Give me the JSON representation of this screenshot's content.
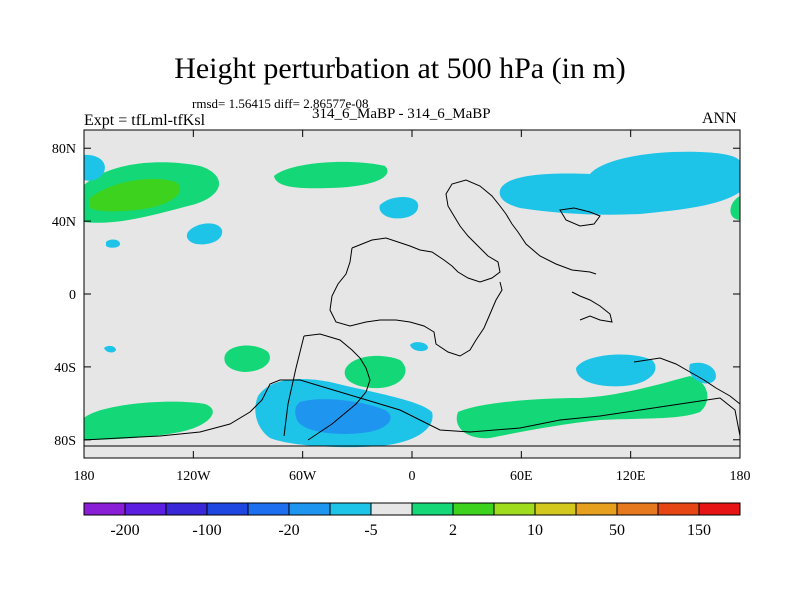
{
  "title": "Height perturbation at 500 hPa (in m)",
  "stats": "rmsd= 1.56415 diff= 2.86577e-08",
  "expt": "Expt = tfLml-tfKsl",
  "subtitle": "314_6_MaBP - 314_6_MaBP",
  "season": "ANN",
  "map": {
    "lon_range": [
      -180,
      180
    ],
    "lat_range": [
      -90,
      90
    ],
    "background_color": "#e6e6e6",
    "y_ticks": [
      {
        "value": 80,
        "label": "80N"
      },
      {
        "value": 40,
        "label": "40N"
      },
      {
        "value": 0,
        "label": "0"
      },
      {
        "value": -40,
        "label": "40S"
      },
      {
        "value": -80,
        "label": "80S"
      }
    ],
    "x_ticks": [
      {
        "value": -180,
        "label": "180"
      },
      {
        "value": -120,
        "label": "120W"
      },
      {
        "value": -60,
        "label": "60W"
      },
      {
        "value": 0,
        "label": "0"
      },
      {
        "value": 60,
        "label": "60E"
      },
      {
        "value": 120,
        "label": "120E"
      },
      {
        "value": 180,
        "label": "180"
      }
    ]
  },
  "colorbar": {
    "colors": [
      "#8a1ed6",
      "#5c1ee0",
      "#3a28d8",
      "#1e46e0",
      "#1e6ef0",
      "#1e96f0",
      "#1ec4e8",
      "#e6e6e6",
      "#14d878",
      "#3cd21e",
      "#a0dc1e",
      "#d2c81e",
      "#e6a01e",
      "#e6781e",
      "#e64614",
      "#e61414"
    ],
    "labels": [
      "-200",
      "-100",
      "-20",
      "-5",
      "2",
      "10",
      "50",
      "150"
    ]
  }
}
